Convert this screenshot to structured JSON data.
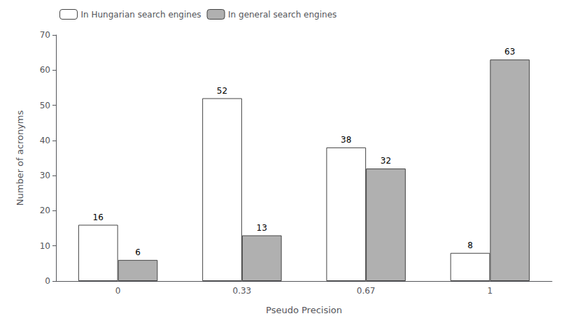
{
  "chart_data": {
    "type": "bar",
    "categories": [
      "0",
      "0.33",
      "0.67",
      "1"
    ],
    "series": [
      {
        "name": "In Hungarian search engines",
        "color": "#ffffff",
        "values": [
          16,
          52,
          38,
          8
        ]
      },
      {
        "name": "In general search engines",
        "color": "#b0b0b0",
        "values": [
          6,
          13,
          32,
          63
        ]
      }
    ],
    "xlabel": "Pseudo Precision",
    "ylabel": "Number of acronyms",
    "ylim": [
      0,
      70
    ],
    "yticks": [
      0,
      10,
      20,
      30,
      40,
      50,
      60,
      70
    ],
    "grid": false,
    "legend": "upper left",
    "data_labels": true
  }
}
